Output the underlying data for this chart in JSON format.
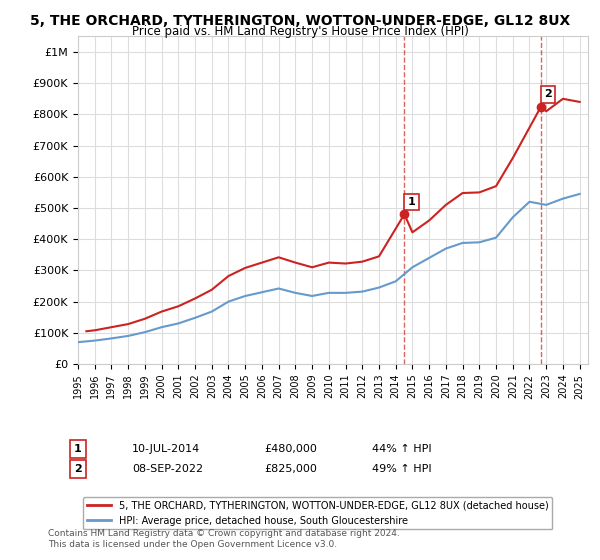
{
  "title": "5, THE ORCHARD, TYTHERINGTON, WOTTON-UNDER-EDGE, GL12 8UX",
  "subtitle": "Price paid vs. HM Land Registry's House Price Index (HPI)",
  "ylim": [
    0,
    1050000
  ],
  "yticks": [
    0,
    100000,
    200000,
    300000,
    400000,
    500000,
    600000,
    700000,
    800000,
    900000,
    1000000
  ],
  "ytick_labels": [
    "£0",
    "£100K",
    "£200K",
    "£300K",
    "£400K",
    "£500K",
    "£600K",
    "£700K",
    "£800K",
    "£900K",
    "£1M"
  ],
  "hpi_color": "#6699cc",
  "price_color": "#cc2222",
  "marker_color_1": "#cc2222",
  "marker_color_2": "#cc2222",
  "sale1_date": 2014.52,
  "sale1_price": 480000,
  "sale1_label": "1",
  "sale1_text": "10-JUL-2014    £480,000    44% ↑ HPI",
  "sale2_date": 2022.69,
  "sale2_price": 825000,
  "sale2_label": "2",
  "sale2_text": "08-SEP-2022    £825,000    49% ↑ HPI",
  "legend_line1": "5, THE ORCHARD, TYTHERINGTON, WOTTON-UNDER-EDGE, GL12 8UX (detached house)",
  "legend_line2": "HPI: Average price, detached house, South Gloucestershire",
  "footer": "Contains HM Land Registry data © Crown copyright and database right 2024.\nThis data is licensed under the Open Government Licence v3.0.",
  "background_color": "#ffffff",
  "grid_color": "#dddddd",
  "hpi_years": [
    1995,
    1996,
    1997,
    1998,
    1999,
    2000,
    2001,
    2002,
    2003,
    2004,
    2005,
    2006,
    2007,
    2008,
    2009,
    2010,
    2011,
    2012,
    2013,
    2014,
    2015,
    2016,
    2017,
    2018,
    2019,
    2020,
    2021,
    2022,
    2023,
    2024,
    2025
  ],
  "hpi_values": [
    70000,
    75000,
    82000,
    90000,
    102000,
    118000,
    130000,
    148000,
    168000,
    200000,
    218000,
    230000,
    242000,
    228000,
    218000,
    228000,
    228000,
    232000,
    245000,
    265000,
    310000,
    340000,
    370000,
    388000,
    390000,
    405000,
    470000,
    520000,
    510000,
    530000,
    545000
  ],
  "price_years": [
    1995.5,
    1996,
    1997,
    1998,
    1999,
    2000,
    2001,
    2002,
    2003,
    2004,
    2005,
    2006,
    2007,
    2008,
    2009,
    2010,
    2011,
    2012,
    2013,
    2014.52,
    2015,
    2016,
    2017,
    2018,
    2019,
    2020,
    2021,
    2022.69,
    2023,
    2024,
    2025
  ],
  "price_values": [
    105000,
    108000,
    118000,
    128000,
    145000,
    168000,
    185000,
    210000,
    238000,
    282000,
    308000,
    325000,
    342000,
    325000,
    310000,
    325000,
    322000,
    328000,
    345000,
    480000,
    422000,
    460000,
    510000,
    548000,
    550000,
    570000,
    660000,
    825000,
    810000,
    850000,
    840000
  ]
}
